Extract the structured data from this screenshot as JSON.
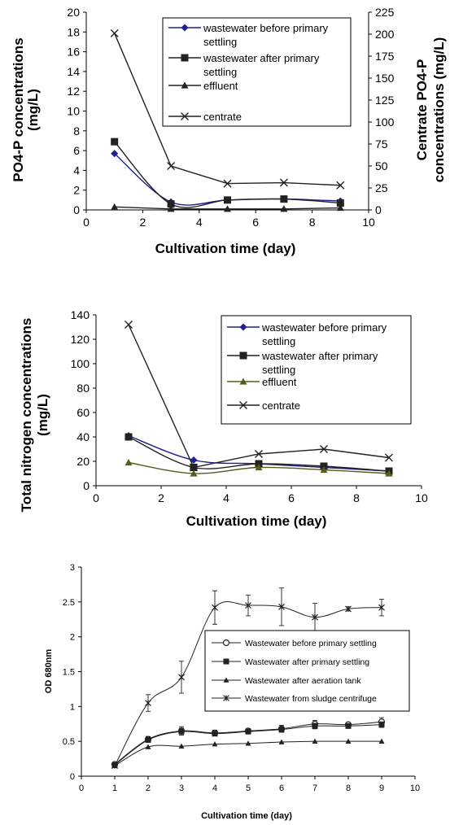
{
  "chart_data": [
    {
      "type": "line",
      "xlabel": "Cultivation time (day)",
      "ylabel": "PO4-P concentrations (mg/L)",
      "y2label": "Centrate PO4-P concentrations (mg/L)",
      "xlim": [
        0,
        10
      ],
      "ylim": [
        0,
        20
      ],
      "y2lim": [
        0,
        225
      ],
      "xticks": [
        "0",
        "2",
        "4",
        "6",
        "8",
        "10"
      ],
      "yticks": [
        "0",
        "2",
        "4",
        "6",
        "8",
        "10",
        "12",
        "14",
        "16",
        "18",
        "20"
      ],
      "y2ticks": [
        "0",
        "25",
        "50",
        "75",
        "100",
        "125",
        "150",
        "175",
        "200",
        "225"
      ],
      "legend_position": "top-right",
      "series": [
        {
          "name": "wastewater before primary settling",
          "axis": "left",
          "marker": "diamond",
          "color": "#1f1f8f",
          "x": [
            1,
            3,
            5,
            7,
            9
          ],
          "values": [
            5.7,
            0.8,
            1.0,
            1.1,
            0.9
          ]
        },
        {
          "name": "wastewater after primary settling",
          "axis": "left",
          "marker": "square",
          "color": "#222222",
          "x": [
            1,
            3,
            5,
            7,
            9
          ],
          "values": [
            6.9,
            0.6,
            1.0,
            1.1,
            0.7
          ]
        },
        {
          "name": "effluent",
          "axis": "left",
          "marker": "triangle",
          "color": "#222222",
          "x": [
            1,
            3,
            5,
            7,
            9
          ],
          "values": [
            0.3,
            0.1,
            0.1,
            0.1,
            0.2
          ]
        },
        {
          "name": "centrate",
          "axis": "right",
          "marker": "x",
          "color": "#222222",
          "x": [
            1,
            3,
            5,
            7,
            9
          ],
          "values": [
            201,
            50,
            30,
            31,
            28
          ]
        }
      ]
    },
    {
      "type": "line",
      "xlabel": "Cultivation time (day)",
      "ylabel": "Total nitrogen concentrations (mg/L)",
      "xlim": [
        0,
        10
      ],
      "ylim": [
        0,
        140
      ],
      "xticks": [
        "0",
        "2",
        "4",
        "6",
        "8",
        "10"
      ],
      "yticks": [
        "0",
        "20",
        "40",
        "60",
        "80",
        "100",
        "120",
        "140"
      ],
      "legend_position": "top-right",
      "series": [
        {
          "name": "wastewater before primary settling",
          "marker": "diamond",
          "color": "#1f1f8f",
          "x": [
            1,
            3,
            5,
            7,
            9
          ],
          "values": [
            41,
            21,
            18,
            15,
            12
          ]
        },
        {
          "name": "wastewater after primary settling",
          "marker": "square",
          "color": "#222222",
          "x": [
            1,
            3,
            5,
            7,
            9
          ],
          "values": [
            40,
            15,
            18,
            16,
            12
          ]
        },
        {
          "name": "effluent",
          "marker": "triangle",
          "color": "#5a5a1a",
          "x": [
            1,
            3,
            5,
            7,
            9
          ],
          "values": [
            19,
            10,
            15,
            13,
            10
          ]
        },
        {
          "name": "centrate",
          "marker": "x",
          "color": "#222222",
          "x": [
            1,
            3,
            5,
            7,
            9
          ],
          "values": [
            132,
            15,
            26,
            30,
            23
          ]
        }
      ]
    },
    {
      "type": "line",
      "xlabel": "Cultivation time (day)",
      "ylabel": "OD 680nm",
      "xlim": [
        0,
        10
      ],
      "ylim": [
        0,
        3
      ],
      "xticks": [
        "0",
        "1",
        "2",
        "3",
        "4",
        "5",
        "6",
        "7",
        "8",
        "9",
        "10"
      ],
      "yticks": [
        "0",
        "0.5",
        "1",
        "1.5",
        "2",
        "2.5",
        "3"
      ],
      "legend_position": "middle-right",
      "series": [
        {
          "name": "Wastewater before primary settling",
          "marker": "circle",
          "color": "#222222",
          "x": [
            1,
            2,
            3,
            4,
            5,
            6,
            7,
            8,
            9
          ],
          "values": [
            0.17,
            0.53,
            0.65,
            0.62,
            0.65,
            0.68,
            0.75,
            0.74,
            0.78
          ],
          "errors": [
            0.02,
            0.04,
            0.06,
            0.04,
            0.03,
            0.05,
            0.05,
            0.03,
            0.06
          ]
        },
        {
          "name": "Wastewater after primary settling",
          "marker": "square",
          "color": "#222222",
          "x": [
            1,
            2,
            3,
            4,
            5,
            6,
            7,
            8,
            9
          ],
          "values": [
            0.16,
            0.52,
            0.64,
            0.61,
            0.64,
            0.67,
            0.72,
            0.72,
            0.74
          ],
          "errors": [
            0.02,
            0.03,
            0.05,
            0.03,
            0.03,
            0.04,
            0.04,
            0.03,
            0.04
          ]
        },
        {
          "name": "Wastewater after aeration tank",
          "marker": "triangle",
          "color": "#222222",
          "x": [
            1,
            2,
            3,
            4,
            5,
            6,
            7,
            8,
            9
          ],
          "values": [
            0.15,
            0.42,
            0.43,
            0.46,
            0.47,
            0.49,
            0.5,
            0.5,
            0.5
          ],
          "errors": [
            0,
            0,
            0,
            0,
            0,
            0,
            0,
            0,
            0
          ]
        },
        {
          "name": "Wastewater from sludge centrifuge",
          "marker": "star",
          "color": "#222222",
          "x": [
            1,
            2,
            3,
            4,
            5,
            6,
            7,
            8,
            9
          ],
          "values": [
            0.15,
            1.05,
            1.42,
            2.42,
            2.45,
            2.43,
            2.28,
            2.4,
            2.42
          ],
          "errors": [
            0.02,
            0.12,
            0.23,
            0.24,
            0.15,
            0.27,
            0.2,
            0.03,
            0.12
          ]
        }
      ]
    }
  ]
}
